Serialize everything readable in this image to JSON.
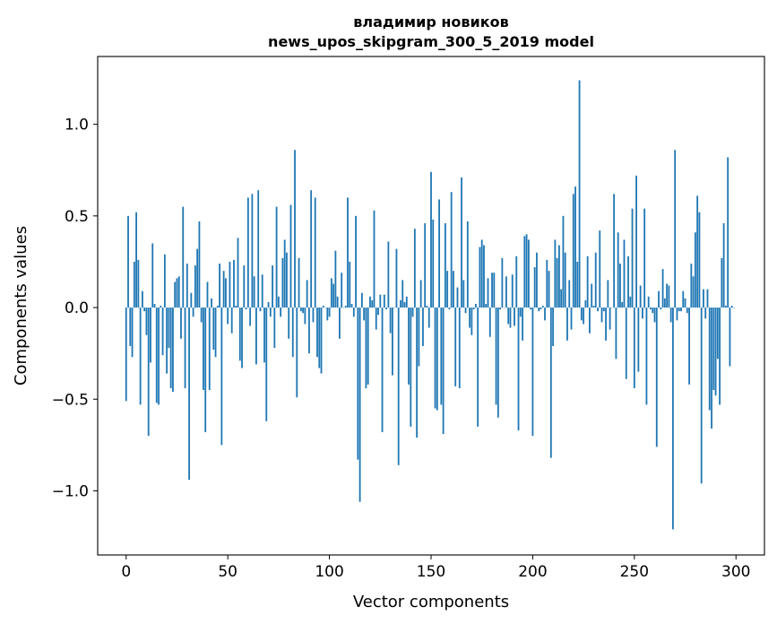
{
  "chart_data": {
    "type": "bar",
    "title_line1": "владимир новиков",
    "title_line2": "news_upos_skipgram_300_5_2019 model",
    "xlabel": "Vector components",
    "ylabel": "Components values",
    "xlim": [
      -14,
      314
    ],
    "ylim": [
      -1.35,
      1.37
    ],
    "xticks": [
      0,
      50,
      100,
      150,
      200,
      250,
      300
    ],
    "xtick_labels": [
      "0",
      "50",
      "100",
      "150",
      "200",
      "250",
      "300"
    ],
    "yticks": [
      -1.0,
      -0.5,
      0.0,
      0.5,
      1.0
    ],
    "ytick_labels": [
      "−1.0",
      "−0.5",
      "0.0",
      "0.5",
      "1.0"
    ],
    "bar_color": "#1f77b4",
    "values": [
      -0.51,
      0.5,
      -0.21,
      -0.27,
      0.25,
      0.52,
      0.26,
      -0.53,
      0.09,
      -0.02,
      -0.15,
      -0.7,
      -0.3,
      0.35,
      0.02,
      -0.52,
      -0.53,
      0.01,
      -0.26,
      0.29,
      -0.36,
      -0.22,
      -0.44,
      -0.46,
      0.14,
      0.16,
      0.17,
      -0.17,
      0.55,
      -0.44,
      0.24,
      -0.94,
      0.08,
      -0.05,
      0.23,
      0.32,
      0.47,
      -0.08,
      -0.45,
      -0.68,
      0.14,
      -0.45,
      0.05,
      -0.23,
      -0.27,
      0.01,
      0.24,
      -0.75,
      0.2,
      0.16,
      -0.09,
      0.25,
      -0.14,
      0.26,
      0.01,
      0.38,
      -0.29,
      -0.33,
      0.23,
      -0.01,
      0.6,
      -0.1,
      0.62,
      0.17,
      -0.31,
      0.64,
      -0.02,
      0.18,
      -0.3,
      -0.62,
      0.03,
      -0.05,
      0.23,
      -0.22,
      0.55,
      0.06,
      -0.05,
      0.27,
      0.37,
      0.3,
      -0.17,
      0.56,
      -0.27,
      0.86,
      -0.49,
      0.27,
      -0.02,
      -0.03,
      -0.09,
      0.15,
      -0.25,
      0.64,
      -0.08,
      0.6,
      -0.27,
      -0.33,
      -0.36,
      0.01,
      0.0,
      -0.07,
      -0.05,
      0.16,
      0.13,
      0.31,
      0.06,
      -0.17,
      0.19,
      0.0,
      0.01,
      0.6,
      0.25,
      0.02,
      -0.05,
      0.5,
      -0.83,
      -1.06,
      0.08,
      -0.07,
      -0.44,
      -0.42,
      0.06,
      0.04,
      0.53,
      -0.12,
      -0.04,
      0.07,
      -0.68,
      0.07,
      -0.01,
      0.36,
      -0.14,
      -0.37,
      0.0,
      0.32,
      -0.86,
      0.04,
      0.15,
      0.03,
      0.06,
      -0.42,
      -0.65,
      -0.05,
      0.43,
      -0.71,
      -0.32,
      0.15,
      -0.21,
      0.46,
      0.01,
      -0.11,
      0.74,
      0.48,
      -0.55,
      -0.56,
      0.59,
      -0.53,
      -0.69,
      0.46,
      0.2,
      -0.01,
      0.63,
      0.2,
      -0.43,
      0.11,
      -0.44,
      0.71,
      0.15,
      -0.03,
      0.47,
      -0.11,
      -0.15,
      -0.01,
      0.02,
      -0.65,
      0.33,
      0.37,
      0.34,
      0.02,
      0.16,
      -0.16,
      0.19,
      0.19,
      -0.53,
      -0.6,
      -0.01,
      0.27,
      0.0,
      0.17,
      -0.09,
      -0.11,
      0.18,
      -0.1,
      0.28,
      -0.67,
      -0.05,
      -0.18,
      0.39,
      0.4,
      0.37,
      -0.01,
      -0.7,
      0.22,
      0.3,
      -0.02,
      -0.01,
      0.01,
      -0.07,
      0.26,
      0.2,
      -0.82,
      -0.21,
      0.37,
      0.27,
      0.34,
      0.1,
      0.5,
      0.3,
      -0.18,
      0.15,
      -0.12,
      0.62,
      0.66,
      0.25,
      1.24,
      -0.07,
      -0.09,
      0.04,
      0.28,
      -0.14,
      0.13,
      0.01,
      0.3,
      -0.02,
      0.42,
      -0.08,
      -0.02,
      -0.18,
      0.15,
      -0.12,
      0.0,
      0.62,
      -0.28,
      0.41,
      0.24,
      0.03,
      0.37,
      -0.39,
      0.28,
      0.06,
      0.54,
      -0.44,
      0.72,
      -0.35,
      0.12,
      -0.06,
      0.54,
      -0.53,
      0.06,
      -0.01,
      -0.03,
      -0.08,
      -0.76,
      0.09,
      -0.01,
      0.21,
      0.05,
      0.13,
      0.12,
      -0.08,
      -1.21,
      0.86,
      -0.07,
      -0.02,
      -0.02,
      0.09,
      0.05,
      -0.03,
      -0.42,
      0.24,
      0.17,
      0.41,
      0.61,
      0.52,
      -0.96,
      0.1,
      -0.06,
      0.1,
      -0.56,
      -0.66,
      -0.45,
      -0.48,
      -0.28,
      -0.53,
      0.27,
      0.46,
      0.01,
      0.82,
      -0.32,
      0.01,
      0.0
    ]
  }
}
